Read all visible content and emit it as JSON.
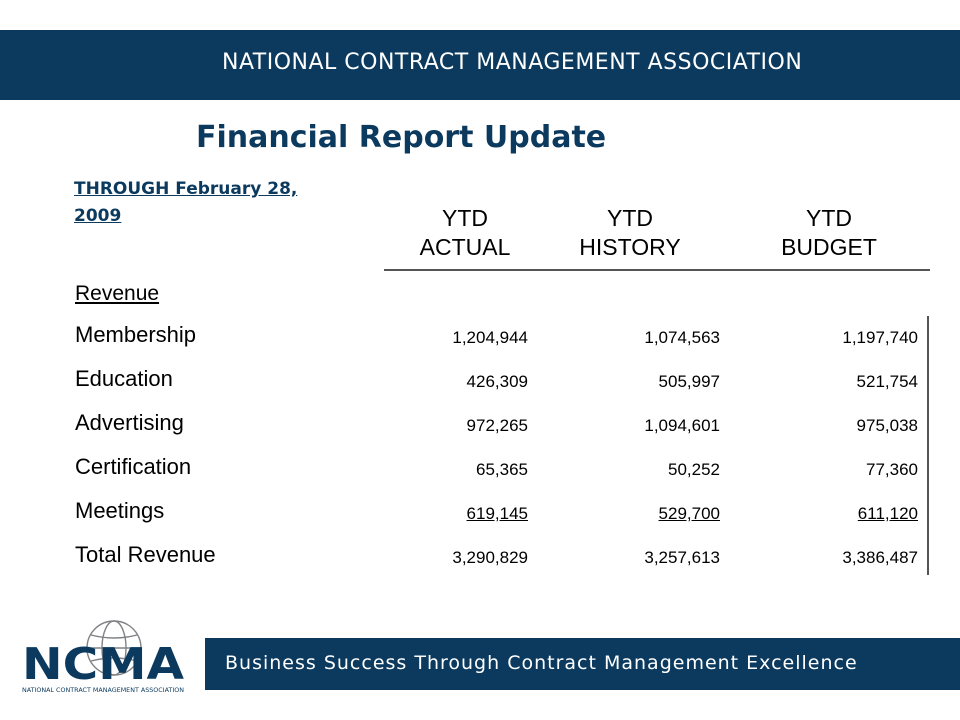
{
  "header": {
    "organization": "NATIONAL CONTRACT MANAGEMENT ASSOCIATION"
  },
  "slide": {
    "title": "Financial Report Update",
    "period_line1": "THROUGH February 28,",
    "period_line2": "2009"
  },
  "table": {
    "columns": [
      {
        "line1": "YTD",
        "line2": "ACTUAL"
      },
      {
        "line1": "YTD",
        "line2": "HISTORY"
      },
      {
        "line1": "YTD",
        "line2": "BUDGET"
      }
    ],
    "section": "Revenue",
    "rows": [
      {
        "label": "Membership",
        "actual": "1,204,944",
        "history": "1,074,563",
        "budget": "1,197,740"
      },
      {
        "label": "Education",
        "actual": "426,309",
        "history": "505,997",
        "budget": "521,754"
      },
      {
        "label": "Advertising",
        "actual": "972,265",
        "history": "1,094,601",
        "budget": "975,038"
      },
      {
        "label": "Certification",
        "actual": "65,365",
        "history": "50,252",
        "budget": "77,360"
      },
      {
        "label": "Meetings",
        "actual": "619,145",
        "history": "529,700",
        "budget": "611,120"
      },
      {
        "label": "Total Revenue",
        "actual": "3,290,829",
        "history": "3,257,613",
        "budget": "3,386,487"
      }
    ]
  },
  "footer": {
    "logo_text": "NCMA",
    "logo_subtext": "NATIONAL CONTRACT MANAGEMENT ASSOCIATION",
    "tagline": "Business Success Through Contract Management Excellence"
  },
  "colors": {
    "brand_navy": "#0b3a5e",
    "logo_gray": "#808285",
    "logo_navy": "#0b3a5e"
  }
}
